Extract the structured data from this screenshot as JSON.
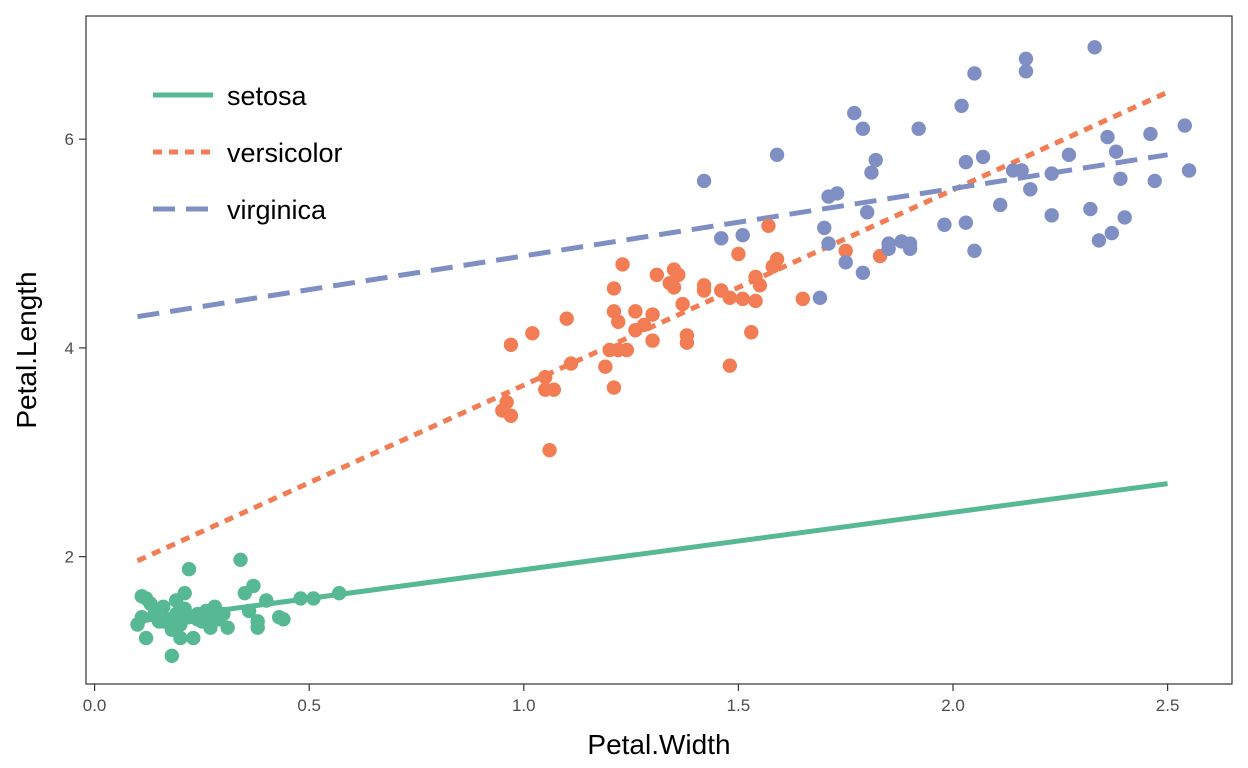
{
  "chart_data": {
    "type": "scatter",
    "title": "",
    "xlabel": "Petal.Width",
    "ylabel": "Petal.Length",
    "xlim": [
      -0.02,
      2.65
    ],
    "ylim": [
      0.78,
      7.18
    ],
    "x_ticks": [
      {
        "value": 0.0,
        "label": "0.0"
      },
      {
        "value": 0.5,
        "label": "0.5"
      },
      {
        "value": 1.0,
        "label": "1.0"
      },
      {
        "value": 1.5,
        "label": "1.5"
      },
      {
        "value": 2.0,
        "label": "2.0"
      },
      {
        "value": 2.5,
        "label": "2.5"
      }
    ],
    "y_ticks": [
      {
        "value": 2,
        "label": "2"
      },
      {
        "value": 4,
        "label": "4"
      },
      {
        "value": 6,
        "label": "6"
      }
    ],
    "grid": false,
    "legend_position": "top-left",
    "series": [
      {
        "name": "setosa",
        "color": "#57b894",
        "line_style": "solid",
        "fit_line": {
          "x": [
            0.1,
            2.5
          ],
          "y": [
            1.38,
            2.7
          ]
        },
        "points": [
          [
            0.1,
            1.35
          ],
          [
            0.11,
            1.42
          ],
          [
            0.12,
            1.6
          ],
          [
            0.11,
            1.62
          ],
          [
            0.13,
            1.55
          ],
          [
            0.12,
            1.22
          ],
          [
            0.15,
            1.38
          ],
          [
            0.16,
            1.52
          ],
          [
            0.17,
            1.4
          ],
          [
            0.18,
            1.3
          ],
          [
            0.19,
            1.45
          ],
          [
            0.19,
            1.58
          ],
          [
            0.18,
            1.05
          ],
          [
            0.2,
            1.22
          ],
          [
            0.2,
            1.35
          ],
          [
            0.21,
            1.5
          ],
          [
            0.21,
            1.65
          ],
          [
            0.22,
            1.42
          ],
          [
            0.22,
            1.88
          ],
          [
            0.23,
            1.22
          ],
          [
            0.24,
            1.45
          ],
          [
            0.25,
            1.38
          ],
          [
            0.26,
            1.48
          ],
          [
            0.27,
            1.32
          ],
          [
            0.28,
            1.52
          ],
          [
            0.29,
            1.4
          ],
          [
            0.3,
            1.45
          ],
          [
            0.31,
            1.32
          ],
          [
            0.34,
            1.97
          ],
          [
            0.35,
            1.65
          ],
          [
            0.36,
            1.48
          ],
          [
            0.37,
            1.72
          ],
          [
            0.38,
            1.38
          ],
          [
            0.38,
            1.32
          ],
          [
            0.4,
            1.58
          ],
          [
            0.43,
            1.42
          ],
          [
            0.44,
            1.4
          ],
          [
            0.48,
            1.6
          ],
          [
            0.51,
            1.6
          ],
          [
            0.57,
            1.65
          ],
          [
            0.14,
            1.45
          ],
          [
            0.16,
            1.38
          ],
          [
            0.2,
            1.42
          ],
          [
            0.24,
            1.4
          ],
          [
            0.27,
            1.45
          ]
        ]
      },
      {
        "name": "versicolor",
        "color": "#f27c53",
        "line_style": "dotted",
        "fit_line": {
          "x": [
            0.1,
            2.5
          ],
          "y": [
            1.96,
            6.45
          ]
        },
        "points": [
          [
            0.95,
            3.4
          ],
          [
            0.96,
            3.48
          ],
          [
            0.97,
            3.35
          ],
          [
            0.97,
            4.03
          ],
          [
            1.02,
            4.14
          ],
          [
            1.05,
            3.6
          ],
          [
            1.05,
            3.72
          ],
          [
            1.06,
            3.02
          ],
          [
            1.07,
            3.6
          ],
          [
            1.1,
            4.28
          ],
          [
            1.11,
            3.85
          ],
          [
            1.19,
            3.82
          ],
          [
            1.2,
            3.98
          ],
          [
            1.21,
            4.35
          ],
          [
            1.21,
            4.57
          ],
          [
            1.21,
            3.62
          ],
          [
            1.22,
            3.98
          ],
          [
            1.22,
            4.25
          ],
          [
            1.23,
            4.8
          ],
          [
            1.24,
            3.98
          ],
          [
            1.26,
            4.17
          ],
          [
            1.26,
            4.35
          ],
          [
            1.28,
            4.22
          ],
          [
            1.3,
            4.07
          ],
          [
            1.3,
            4.32
          ],
          [
            1.31,
            4.7
          ],
          [
            1.34,
            4.62
          ],
          [
            1.35,
            4.58
          ],
          [
            1.35,
            4.75
          ],
          [
            1.36,
            4.7
          ],
          [
            1.37,
            4.42
          ],
          [
            1.38,
            4.05
          ],
          [
            1.38,
            4.12
          ],
          [
            1.42,
            4.55
          ],
          [
            1.42,
            4.6
          ],
          [
            1.46,
            4.55
          ],
          [
            1.48,
            4.48
          ],
          [
            1.48,
            3.83
          ],
          [
            1.5,
            4.9
          ],
          [
            1.51,
            4.47
          ],
          [
            1.53,
            4.15
          ],
          [
            1.54,
            4.45
          ],
          [
            1.54,
            4.68
          ],
          [
            1.55,
            4.6
          ],
          [
            1.57,
            5.17
          ],
          [
            1.58,
            4.78
          ],
          [
            1.59,
            4.85
          ],
          [
            1.65,
            4.47
          ],
          [
            1.75,
            4.93
          ],
          [
            1.83,
            4.88
          ]
        ]
      },
      {
        "name": "virginica",
        "color": "#7f8fc4",
        "line_style": "dashed",
        "fit_line": {
          "x": [
            0.1,
            2.5
          ],
          "y": [
            4.3,
            5.85
          ]
        },
        "points": [
          [
            1.42,
            5.6
          ],
          [
            1.46,
            5.05
          ],
          [
            1.51,
            5.08
          ],
          [
            1.59,
            5.85
          ],
          [
            1.69,
            4.48
          ],
          [
            1.7,
            5.15
          ],
          [
            1.71,
            5.45
          ],
          [
            1.71,
            5.0
          ],
          [
            1.73,
            5.48
          ],
          [
            1.75,
            4.82
          ],
          [
            1.77,
            6.25
          ],
          [
            1.79,
            6.1
          ],
          [
            1.79,
            4.72
          ],
          [
            1.8,
            5.3
          ],
          [
            1.81,
            5.68
          ],
          [
            1.82,
            5.8
          ],
          [
            1.85,
            4.95
          ],
          [
            1.85,
            5.0
          ],
          [
            1.88,
            5.02
          ],
          [
            1.9,
            4.95
          ],
          [
            1.9,
            5.0
          ],
          [
            1.92,
            6.1
          ],
          [
            1.98,
            5.18
          ],
          [
            2.02,
            6.32
          ],
          [
            2.03,
            5.78
          ],
          [
            2.03,
            5.2
          ],
          [
            2.05,
            6.63
          ],
          [
            2.05,
            4.93
          ],
          [
            2.07,
            5.83
          ],
          [
            2.11,
            5.37
          ],
          [
            2.14,
            5.7
          ],
          [
            2.16,
            5.7
          ],
          [
            2.17,
            6.65
          ],
          [
            2.17,
            6.77
          ],
          [
            2.18,
            5.52
          ],
          [
            2.23,
            5.67
          ],
          [
            2.23,
            5.27
          ],
          [
            2.27,
            5.85
          ],
          [
            2.32,
            5.33
          ],
          [
            2.33,
            6.88
          ],
          [
            2.34,
            5.03
          ],
          [
            2.36,
            6.02
          ],
          [
            2.37,
            5.1
          ],
          [
            2.38,
            5.88
          ],
          [
            2.39,
            5.62
          ],
          [
            2.4,
            5.25
          ],
          [
            2.46,
            6.05
          ],
          [
            2.47,
            5.6
          ],
          [
            2.54,
            6.13
          ],
          [
            2.55,
            5.7
          ]
        ]
      }
    ]
  }
}
